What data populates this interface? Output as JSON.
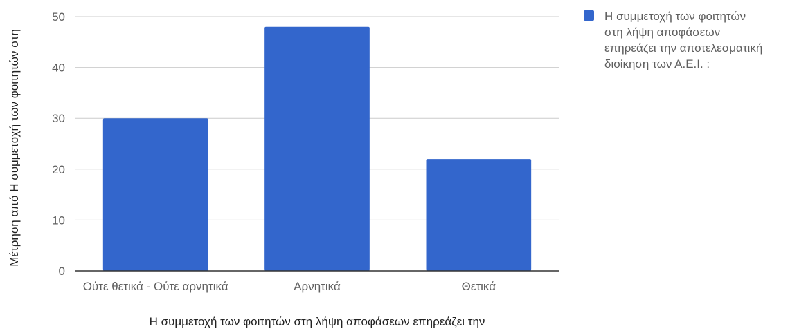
{
  "chart_data": {
    "type": "bar",
    "categories": [
      "Ούτε θετικά - Ούτε αρνητικά",
      "Αρνητικά",
      "Θετικά"
    ],
    "series": [
      {
        "name": "Η συμμετοχή των φοιτητών στη λήψη αποφάσεων επηρεάζει την αποτελεσματική διοίκηση των Α.Ε.Ι. :",
        "values": [
          30,
          48,
          22
        ],
        "color": "#3366cc"
      }
    ],
    "legend_lines": [
      "Η συμμετοχή των φοιτητών",
      "στη λήψη αποφάσεων",
      "επηρεάζει την αποτελεσματική",
      "διοίκηση των Α.Ε.Ι. :"
    ],
    "xlabel": "Η συμμετοχή των φοιτητών στη λήψη αποφάσεων επηρεάζει την",
    "ylabel": "Μέτρηση από Η συμμετοχή των φοιτητών στη",
    "ylim": [
      0,
      50
    ],
    "yticks": [
      0,
      10,
      20,
      30,
      40,
      50
    ],
    "grid": true,
    "legend_position": "right",
    "colors": {
      "bar": "#3366cc",
      "grid": "#cccccc",
      "axis": "#333333"
    }
  }
}
